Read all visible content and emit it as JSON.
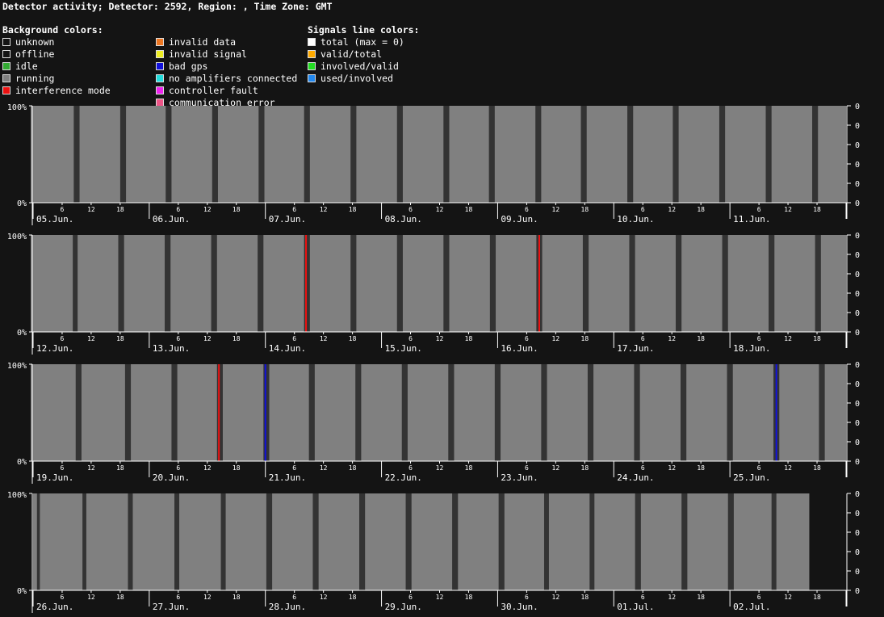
{
  "title": "Detector activity; Detector: 2592, Region: , Time Zone: GMT",
  "legend": {
    "background": {
      "heading": "Background colors:",
      "items": [
        {
          "label": "unknown",
          "color": "#141414"
        },
        {
          "label": "offline",
          "color": "#141414"
        },
        {
          "label": "idle",
          "color": "#33aa33"
        },
        {
          "label": "running",
          "color": "#808080"
        },
        {
          "label": "interference mode",
          "color": "#ee1111"
        },
        {
          "label": "invalid data",
          "color": "#ee7722"
        },
        {
          "label": "invalid signal",
          "color": "#eeee22"
        },
        {
          "label": "bad gps",
          "color": "#1111dd"
        },
        {
          "label": "no amplifiers connected",
          "color": "#22dddd"
        },
        {
          "label": "controller fault",
          "color": "#ee22ee"
        },
        {
          "label": "communication error",
          "color": "#ee5588"
        }
      ]
    },
    "signals": {
      "heading": "Signals line colors:",
      "items": [
        {
          "label": "total (max = 0)",
          "color": "#ffffff"
        },
        {
          "label": "valid/total",
          "color": "#ffaa00"
        },
        {
          "label": "involved/valid",
          "color": "#22dd22"
        },
        {
          "label": "used/involved",
          "color": "#2288ee"
        }
      ]
    }
  },
  "chart_data": {
    "type": "timeline",
    "y_left_ticks": [
      "100%",
      "0%"
    ],
    "y_right_ticks": [
      "0",
      "0",
      "0",
      "0",
      "0",
      "0"
    ],
    "hour_ticks": [
      "6",
      "12",
      "18"
    ],
    "colors": {
      "running": "#808080",
      "gap": "#333333",
      "interference": "#ee1111",
      "bad_gps": "#1111dd",
      "axis": "#ffffff",
      "background": "#141414"
    },
    "rows": [
      {
        "days": [
          "05.Jun.",
          "06.Jun.",
          "07.Jun.",
          "08.Jun.",
          "09.Jun.",
          "10.Jun.",
          "11.Jun."
        ],
        "data_start_hour": -0.5,
        "data_end_hour": 168,
        "running_blocks": [
          [
            -0.5,
            8.4
          ],
          [
            9.6,
            18
          ],
          [
            19.2,
            27.4
          ],
          [
            28.6,
            37
          ],
          [
            38.2,
            46.6
          ],
          [
            47.8,
            56
          ],
          [
            57.2,
            65.6
          ],
          [
            66.8,
            75.2
          ],
          [
            76.4,
            84.8
          ],
          [
            86,
            94.2
          ],
          [
            95.4,
            103.8
          ],
          [
            105,
            113.2
          ],
          [
            114.4,
            122.8
          ],
          [
            124,
            132.2
          ],
          [
            133.4,
            141.8
          ],
          [
            143,
            151.4
          ],
          [
            152.6,
            161
          ],
          [
            162.2,
            168
          ]
        ],
        "events": []
      },
      {
        "days": [
          "12.Jun.",
          "13.Jun.",
          "14.Jun.",
          "15.Jun.",
          "16.Jun.",
          "17.Jun.",
          "18.Jun."
        ],
        "data_start_hour": -0.5,
        "data_end_hour": 168,
        "running_blocks": [
          [
            -0.5,
            8.2
          ],
          [
            9.2,
            17.6
          ],
          [
            18.8,
            27.2
          ],
          [
            28.4,
            36.8
          ],
          [
            38,
            46.4
          ],
          [
            47.6,
            56
          ],
          [
            57.2,
            65.6
          ],
          [
            66.8,
            75.2
          ],
          [
            76.4,
            84.8
          ],
          [
            86,
            94.4
          ],
          [
            95.6,
            104
          ],
          [
            105.2,
            113.6
          ],
          [
            114.8,
            123.2
          ],
          [
            124.4,
            132.8
          ],
          [
            134,
            142.4
          ],
          [
            143.6,
            152
          ],
          [
            153.2,
            161.6
          ],
          [
            162.8,
            168
          ]
        ],
        "events": [
          {
            "hour": 56.4,
            "kind": "interference"
          },
          {
            "hour": 104.6,
            "kind": "interference"
          }
        ]
      },
      {
        "days": [
          "19.Jun.",
          "20.Jun.",
          "21.Jun.",
          "22.Jun.",
          "23.Jun.",
          "24.Jun.",
          "25.Jun."
        ],
        "data_start_hour": -0.5,
        "data_end_hour": 168,
        "running_blocks": [
          [
            -0.5,
            8.8
          ],
          [
            10,
            19
          ],
          [
            20.2,
            28.6
          ],
          [
            29.8,
            38
          ],
          [
            39.2,
            47.6
          ],
          [
            48.8,
            57
          ],
          [
            58.2,
            66.6
          ],
          [
            67.8,
            76.2
          ],
          [
            77.4,
            85.8
          ],
          [
            87,
            95.4
          ],
          [
            96.6,
            105
          ],
          [
            106.2,
            114.6
          ],
          [
            115.8,
            124.2
          ],
          [
            125.4,
            133.8
          ],
          [
            135,
            143.4
          ],
          [
            144.6,
            153
          ],
          [
            154.2,
            162.4
          ],
          [
            163.6,
            168
          ]
        ],
        "events": [
          {
            "hour": 38.4,
            "kind": "interference"
          },
          {
            "hour": 48,
            "kind": "bad_gps"
          },
          {
            "hour": 153.6,
            "kind": "bad_gps"
          }
        ]
      },
      {
        "days": [
          "26.Jun.",
          "27.Jun.",
          "28.Jun.",
          "29.Jun.",
          "30.Jun.",
          "01.Jul.",
          "02.Jul."
        ],
        "data_start_hour": 0,
        "data_end_hour": 160.4,
        "running_blocks": [
          [
            0,
            0.8
          ],
          [
            1.4,
            10.2
          ],
          [
            11,
            19.6
          ],
          [
            20.6,
            29.2
          ],
          [
            30.2,
            38.8
          ],
          [
            39.8,
            48.2
          ],
          [
            49.4,
            57.8
          ],
          [
            59,
            67.4
          ],
          [
            68.6,
            77
          ],
          [
            78.2,
            86.6
          ],
          [
            87.8,
            96.2
          ],
          [
            97.4,
            105.6
          ],
          [
            106.6,
            115
          ],
          [
            116,
            124.4
          ],
          [
            125.6,
            134
          ],
          [
            135.2,
            143.6
          ],
          [
            144.8,
            152.6
          ],
          [
            153.6,
            160.4
          ]
        ],
        "events": []
      }
    ]
  }
}
